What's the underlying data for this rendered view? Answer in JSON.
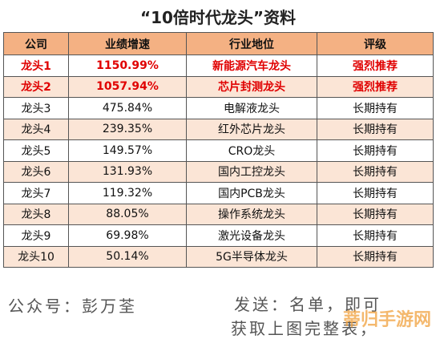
{
  "title": "“10倍时代龙头”资料",
  "table": {
    "header": [
      "公司",
      "业绩增速",
      "行业地位",
      "评级"
    ],
    "rows": [
      [
        "龙头1",
        "1150.99%",
        "新能源汽车龙头",
        "强烈推荐"
      ],
      [
        "龙头2",
        "1057.94%",
        "芯片封测龙头",
        "强烈推荐"
      ],
      [
        "龙头3",
        "475.84%",
        "电解液龙头",
        "长期持有"
      ],
      [
        "龙头4",
        "239.35%",
        "红外芯片龙头",
        "长期持有"
      ],
      [
        "龙头5",
        "149.57%",
        "CRO龙头",
        "长期持有"
      ],
      [
        "龙头6",
        "131.93%",
        "国内工控龙头",
        "长期持有"
      ],
      [
        "龙头7",
        "119.32%",
        "国内PCB龙头",
        "长期持有"
      ],
      [
        "龙头8",
        "88.05%",
        "操作系统龙头",
        "长期持有"
      ],
      [
        "龙头9",
        "69.98%",
        "激光设备龙头",
        "长期持有"
      ],
      [
        "龙头10",
        "50.14%",
        "5G半导体龙头",
        "长期持有"
      ]
    ]
  },
  "footer": {
    "account": "公众号：彭万荃",
    "line1": "发送：名单，即可",
    "line2": "获取上图完整表，"
  },
  "watermark": "蒂归手游网"
}
